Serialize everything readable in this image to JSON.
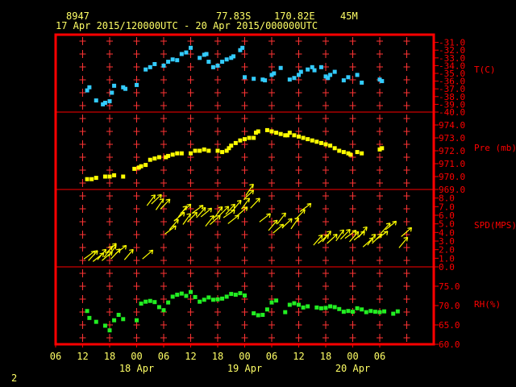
{
  "header": {
    "station": "8947",
    "lat": "77.83S",
    "lon": "170.82E",
    "elev": "45M",
    "period": "17 Apr 2015/120000UTC - 20 Apr 2015/000000UTC"
  },
  "page_number": "2",
  "colors": {
    "frame": "#ff0000",
    "grid": "#ff3333",
    "text": "#ffff66",
    "temp": "#33ccff",
    "pres": "#ffff00",
    "wind": "#ffff00",
    "rh": "#22ee22"
  },
  "chart_data": {
    "type": "scatter",
    "x_axis": {
      "range_hours": [
        -6,
        78
      ],
      "tick_labels": [
        "06",
        "12",
        "18",
        "00",
        "06",
        "12",
        "18",
        "00",
        "06",
        "12",
        "18",
        "00",
        "06"
      ],
      "date_labels": [
        {
          "hour": 12,
          "label": "18 Apr"
        },
        {
          "hour": 36,
          "label": "19 Apr"
        },
        {
          "hour": 60,
          "label": "20 Apr"
        }
      ]
    },
    "panels": [
      {
        "id": "temp",
        "label": "T(C)",
        "ylim": [
          -40,
          -30
        ],
        "ticks": [
          "-31.0",
          "-32.0",
          "-33.0",
          "-34.0",
          "-35.0",
          "-36.0",
          "-37.0",
          "-38.0",
          "-39.0",
          "-40.0"
        ],
        "tick_values": [
          -31,
          -32,
          -33,
          -34,
          -35,
          -36,
          -37,
          -38,
          -39,
          -40
        ],
        "points": [
          [
            1,
            -37.2
          ],
          [
            1.5,
            -36.8
          ],
          [
            3,
            -38.5
          ],
          [
            4.5,
            -39.0
          ],
          [
            5,
            -38.8
          ],
          [
            6,
            -38.6
          ],
          [
            6.5,
            -37.5
          ],
          [
            7,
            -36.6
          ],
          [
            9,
            -36.8
          ],
          [
            9.5,
            -37.0
          ],
          [
            12,
            -36.5
          ],
          [
            14,
            -34.5
          ],
          [
            15,
            -34.2
          ],
          [
            16,
            -33.8
          ],
          [
            18,
            -34.0
          ],
          [
            19,
            -33.5
          ],
          [
            20,
            -33.2
          ],
          [
            21,
            -33.3
          ],
          [
            22,
            -32.5
          ],
          [
            23,
            -32.3
          ],
          [
            24,
            -31.7
          ],
          [
            26,
            -33.0
          ],
          [
            27,
            -32.6
          ],
          [
            27.5,
            -32.5
          ],
          [
            28,
            -33.5
          ],
          [
            29,
            -34.2
          ],
          [
            30,
            -34.0
          ],
          [
            31,
            -33.5
          ],
          [
            32,
            -33.2
          ],
          [
            33,
            -33.0
          ],
          [
            33.5,
            -32.8
          ],
          [
            35,
            -32.0
          ],
          [
            35.5,
            -31.7
          ],
          [
            36,
            -35.5
          ],
          [
            38,
            -35.7
          ],
          [
            40,
            -35.8
          ],
          [
            40.5,
            -35.9
          ],
          [
            42,
            -35.2
          ],
          [
            42.5,
            -35.0
          ],
          [
            44,
            -34.3
          ],
          [
            46,
            -35.8
          ],
          [
            47,
            -35.6
          ],
          [
            48,
            -35.2
          ],
          [
            48.5,
            -34.8
          ],
          [
            50,
            -34.5
          ],
          [
            51,
            -34.2
          ],
          [
            51.5,
            -34.6
          ],
          [
            53,
            -34.2
          ],
          [
            54,
            -35.4
          ],
          [
            54.5,
            -35.6
          ],
          [
            55,
            -35.2
          ],
          [
            56,
            -34.8
          ],
          [
            58,
            -35.9
          ],
          [
            59,
            -35.5
          ],
          [
            61,
            -35.2
          ],
          [
            62,
            -36.2
          ],
          [
            66,
            -35.8
          ],
          [
            66.5,
            -36.0
          ]
        ]
      },
      {
        "id": "pres",
        "label": "Pre (mb)",
        "ylim": [
          969,
          975
        ],
        "ticks": [
          "974.0",
          "973.0",
          "972.0",
          "971.0",
          "970.0",
          "969.0"
        ],
        "tick_values": [
          974,
          973,
          972,
          971,
          970,
          969
        ],
        "points": [
          [
            1,
            969.8
          ],
          [
            2,
            969.8
          ],
          [
            3,
            969.9
          ],
          [
            5,
            970.0
          ],
          [
            6,
            970.0
          ],
          [
            7,
            970.1
          ],
          [
            9,
            970.0
          ],
          [
            11.5,
            970.6
          ],
          [
            12.5,
            970.7
          ],
          [
            13,
            970.8
          ],
          [
            14,
            970.9
          ],
          [
            15,
            971.3
          ],
          [
            16,
            971.4
          ],
          [
            17,
            971.5
          ],
          [
            18.5,
            971.5
          ],
          [
            19,
            971.6
          ],
          [
            20,
            971.7
          ],
          [
            21,
            971.8
          ],
          [
            22,
            971.8
          ],
          [
            24,
            971.8
          ],
          [
            25,
            972.0
          ],
          [
            26,
            972.0
          ],
          [
            27,
            972.1
          ],
          [
            28,
            972.0
          ],
          [
            30,
            972.0
          ],
          [
            31,
            971.9
          ],
          [
            32,
            972.0
          ],
          [
            32.5,
            972.2
          ],
          [
            33,
            972.4
          ],
          [
            34,
            972.6
          ],
          [
            35,
            972.8
          ],
          [
            36,
            972.9
          ],
          [
            37,
            973.0
          ],
          [
            38,
            973.0
          ],
          [
            38.5,
            973.4
          ],
          [
            39,
            973.5
          ],
          [
            41,
            973.6
          ],
          [
            42,
            973.5
          ],
          [
            43,
            973.4
          ],
          [
            44,
            973.3
          ],
          [
            45,
            973.2
          ],
          [
            45.5,
            973.2
          ],
          [
            46,
            973.4
          ],
          [
            47,
            973.2
          ],
          [
            48,
            973.1
          ],
          [
            49,
            973.0
          ],
          [
            50,
            972.9
          ],
          [
            51,
            972.8
          ],
          [
            52,
            972.7
          ],
          [
            53,
            972.6
          ],
          [
            54,
            972.5
          ],
          [
            55,
            972.4
          ],
          [
            56,
            972.2
          ],
          [
            57,
            972.0
          ],
          [
            58,
            971.9
          ],
          [
            59,
            971.8
          ],
          [
            59.5,
            971.7
          ],
          [
            61,
            971.9
          ],
          [
            62,
            971.8
          ],
          [
            66,
            972.1
          ],
          [
            66.5,
            972.2
          ]
        ]
      },
      {
        "id": "wind",
        "label": "SPD(MPS)",
        "ylim": [
          0,
          9
        ],
        "ticks": [
          "8.0",
          "7.0",
          "6.0",
          "5.0",
          "4.0",
          "3.0",
          "2.0",
          "1.0",
          "0.0"
        ],
        "tick_values": [
          8,
          7,
          6,
          5,
          4,
          3,
          2,
          1,
          0
        ],
        "points": [
          [
            1,
            1.2
          ],
          [
            2,
            1.0
          ],
          [
            3,
            0.9
          ],
          [
            4,
            1.1
          ],
          [
            5,
            1.0
          ],
          [
            5.5,
            1.4
          ],
          [
            6,
            1.9
          ],
          [
            6.5,
            1.5
          ],
          [
            7,
            1.2
          ],
          [
            8,
            1.8
          ],
          [
            10,
            1.1
          ],
          [
            14,
            1.2
          ],
          [
            15,
            7.4
          ],
          [
            16,
            7.6
          ],
          [
            17,
            6.9
          ],
          [
            18,
            7.0
          ],
          [
            19,
            4.1
          ],
          [
            20,
            4.6
          ],
          [
            21,
            5.6
          ],
          [
            22,
            6.1
          ],
          [
            22.5,
            6.5
          ],
          [
            23,
            5.2
          ],
          [
            24,
            5.5
          ],
          [
            25,
            6.5
          ],
          [
            26,
            6.0
          ],
          [
            27,
            6.1
          ],
          [
            28,
            5.0
          ],
          [
            29,
            5.2
          ],
          [
            30,
            6.0
          ],
          [
            31,
            6.2
          ],
          [
            32,
            6.0
          ],
          [
            32.5,
            6.4
          ],
          [
            33,
            5.3
          ],
          [
            34,
            6.8
          ],
          [
            35,
            6.2
          ],
          [
            36,
            7.0
          ],
          [
            36.5,
            8.1
          ],
          [
            37,
            8.6
          ],
          [
            38,
            7.1
          ],
          [
            40,
            5.5
          ],
          [
            42,
            4.5
          ],
          [
            43,
            4.2
          ],
          [
            44,
            5.3
          ],
          [
            45,
            4.8
          ],
          [
            47,
            4.7
          ],
          [
            48,
            5.8
          ],
          [
            49,
            6.7
          ],
          [
            52,
            2.8
          ],
          [
            53,
            3.0
          ],
          [
            54,
            3.2
          ],
          [
            55,
            3.0
          ],
          [
            57,
            3.3
          ],
          [
            58,
            3.5
          ],
          [
            59,
            3.6
          ],
          [
            60,
            3.2
          ],
          [
            61,
            3.4
          ],
          [
            62,
            3.7
          ],
          [
            63,
            2.6
          ],
          [
            64,
            2.8
          ],
          [
            65,
            3.0
          ],
          [
            66,
            3.5
          ],
          [
            67,
            4.2
          ],
          [
            68,
            4.6
          ],
          [
            71,
            2.5
          ],
          [
            71.5,
            3.8
          ]
        ]
      },
      {
        "id": "rh",
        "label": "RH(%)",
        "ylim": [
          60,
          80
        ],
        "ticks": [
          "75.0",
          "70.0",
          "65.0",
          "60.0"
        ],
        "tick_values": [
          75,
          70,
          65,
          60
        ],
        "points": [
          [
            1,
            68.6
          ],
          [
            1.5,
            66.8
          ],
          [
            3,
            65.8
          ],
          [
            5,
            64.8
          ],
          [
            6,
            63.6
          ],
          [
            7,
            66.2
          ],
          [
            8,
            67.6
          ],
          [
            9,
            66.5
          ],
          [
            12,
            66.2
          ],
          [
            13,
            70.5
          ],
          [
            14,
            71.0
          ],
          [
            15,
            71.2
          ],
          [
            16,
            70.9
          ],
          [
            17,
            69.6
          ],
          [
            18,
            68.8
          ],
          [
            19,
            70.8
          ],
          [
            20,
            72.3
          ],
          [
            21,
            72.8
          ],
          [
            22,
            73.1
          ],
          [
            23,
            72.5
          ],
          [
            24,
            73.5
          ],
          [
            25,
            72.2
          ],
          [
            26,
            71.0
          ],
          [
            27,
            71.5
          ],
          [
            28,
            72.1
          ],
          [
            29,
            71.5
          ],
          [
            30,
            71.6
          ],
          [
            31,
            71.8
          ],
          [
            32,
            72.3
          ],
          [
            33,
            73.0
          ],
          [
            34,
            72.8
          ],
          [
            35,
            73.2
          ],
          [
            36,
            72.6
          ],
          [
            38,
            68.0
          ],
          [
            39,
            67.5
          ],
          [
            40,
            67.6
          ],
          [
            41,
            69.0
          ],
          [
            42,
            70.8
          ],
          [
            43,
            71.3
          ],
          [
            45,
            68.3
          ],
          [
            46,
            70.2
          ],
          [
            47,
            70.6
          ],
          [
            48,
            70.2
          ],
          [
            49,
            69.5
          ],
          [
            50,
            69.8
          ],
          [
            52,
            69.5
          ],
          [
            53,
            69.3
          ],
          [
            54,
            69.4
          ],
          [
            55,
            69.8
          ],
          [
            56,
            69.6
          ],
          [
            57,
            69.1
          ],
          [
            58,
            68.4
          ],
          [
            59,
            68.6
          ],
          [
            60,
            68.4
          ],
          [
            61,
            69.3
          ],
          [
            62,
            69.0
          ],
          [
            63,
            68.3
          ],
          [
            64,
            68.6
          ],
          [
            65,
            68.4
          ],
          [
            66,
            68.3
          ],
          [
            67,
            68.5
          ],
          [
            69,
            67.9
          ],
          [
            70,
            68.5
          ]
        ]
      }
    ]
  }
}
